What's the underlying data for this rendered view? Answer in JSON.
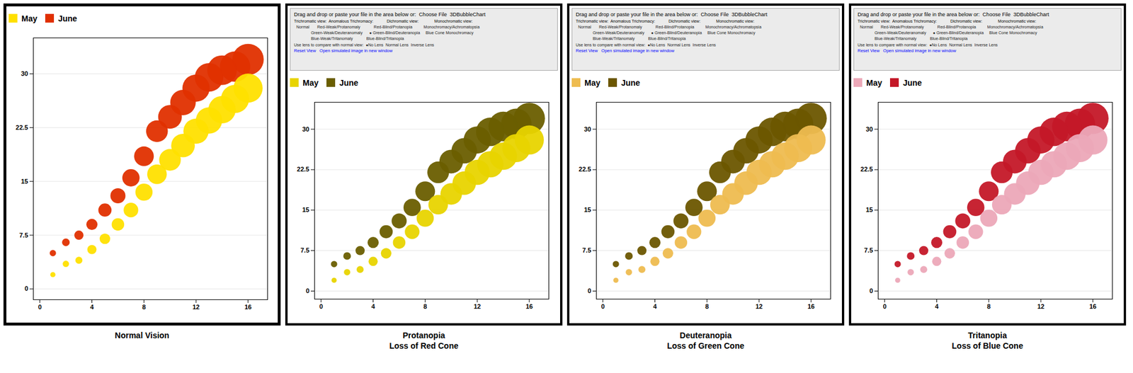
{
  "chart_data": [
    {
      "type": "scatter",
      "title": "Normal Vision",
      "x": [
        1,
        2,
        3,
        4,
        5,
        6,
        7,
        8,
        9,
        10,
        11,
        12,
        13,
        14,
        15,
        16
      ],
      "series": [
        {
          "name": "May",
          "color": "#FFE000",
          "values": [
            2.0,
            3.5,
            4.0,
            5.5,
            7.0,
            9.0,
            11.0,
            13.5,
            16.0,
            18.0,
            20.0,
            22.0,
            23.5,
            25.0,
            26.5,
            28.0
          ],
          "sizes": [
            60,
            90,
            110,
            190,
            250,
            350,
            480,
            660,
            860,
            1050,
            1250,
            1430,
            1560,
            1680,
            1780,
            1900
          ]
        },
        {
          "name": "June",
          "color": "#E03000",
          "values": [
            5.0,
            6.5,
            7.5,
            9.0,
            11.0,
            13.0,
            15.5,
            18.5,
            22.0,
            24.0,
            26.0,
            28.0,
            29.5,
            30.5,
            31.0,
            32.0
          ],
          "sizes": [
            90,
            130,
            190,
            280,
            390,
            510,
            670,
            870,
            1060,
            1260,
            1460,
            1660,
            1830,
            1970,
            2070,
            2200
          ]
        }
      ],
      "xlim": [
        -0.5,
        17.5
      ],
      "ylim": [
        -1.5,
        35
      ],
      "xticks": [
        0,
        4,
        8,
        12,
        16
      ],
      "yticks": [
        0,
        7.5,
        15,
        22.5,
        30
      ],
      "grid": "y",
      "legend": "upper left"
    },
    {
      "type": "scatter",
      "title": "Protanopia\nLoss of Red Cone",
      "annotations": [
        "Drag and drop or paste your file in the area below or:  Choose File  3DBubbleChart",
        "Trichromatic view:  Anomalous Trichromacy:            Dichromatic view:              Monochromatic view:",
        "  Normal       Red-Weak/Protanomaly            Red-Blind/Protanopia          Monochromacy/Achromatopsia",
        "               Green-Weak/Deuteranomaly      ● Green-Blind/Deuteranopia     Blue Cone Monochromacy",
        "               Blue-Weak/Tritanomaly            Blue-Blind/Tritanopia",
        "Use lens to compare with normal view:  ●No Lens  Normal Lens  Inverse Lens",
        "Reset View   Open simulated image in new window"
      ],
      "x": [
        1,
        2,
        3,
        4,
        5,
        6,
        7,
        8,
        9,
        10,
        11,
        12,
        13,
        14,
        15,
        16
      ],
      "series": [
        {
          "name": "May",
          "color": "#E8D400",
          "values": [
            2.0,
            3.5,
            4.0,
            5.5,
            7.0,
            9.0,
            11.0,
            13.5,
            16.0,
            18.0,
            20.0,
            22.0,
            23.5,
            25.0,
            26.5,
            28.0
          ],
          "sizes": [
            60,
            90,
            110,
            190,
            250,
            350,
            480,
            660,
            860,
            1050,
            1250,
            1430,
            1560,
            1680,
            1780,
            1900
          ]
        },
        {
          "name": "June",
          "color": "#6A5E00",
          "values": [
            5.0,
            6.5,
            7.5,
            9.0,
            11.0,
            13.0,
            15.5,
            18.5,
            22.0,
            24.0,
            26.0,
            28.0,
            29.5,
            30.5,
            31.0,
            32.0
          ],
          "sizes": [
            90,
            130,
            190,
            280,
            390,
            510,
            670,
            870,
            1060,
            1260,
            1460,
            1660,
            1830,
            1970,
            2070,
            2200
          ]
        }
      ],
      "xlim": [
        -0.5,
        17.5
      ],
      "ylim": [
        -1.5,
        35
      ],
      "xticks": [
        0,
        4,
        8,
        12,
        16
      ],
      "yticks": [
        0,
        7.5,
        15,
        22.5,
        30
      ],
      "grid": "y",
      "legend": "upper left"
    },
    {
      "type": "scatter",
      "title": "Deuteranopia\nLoss of Green Cone",
      "annotations": [
        "Drag and drop or paste your file in the area below or:  Choose File  3DBubbleChart",
        "Trichromatic view:  Anomalous Trichromacy:            Dichromatic view:              Monochromatic view:",
        "  Normal       Red-Weak/Protanomaly            Red-Blind/Protanopia          Monochromacy/Achromatopsia",
        "               Green-Weak/Deuteranomaly      ● Green-Blind/Deuteranopia     Blue Cone Monochromacy",
        "               Blue-Weak/Tritanomaly            Blue-Blind/Tritanopia",
        "Use lens to compare with normal view:  ●No Lens  Normal Lens  Inverse Lens",
        "Reset View   Open simulated image in new window"
      ],
      "x": [
        1,
        2,
        3,
        4,
        5,
        6,
        7,
        8,
        9,
        10,
        11,
        12,
        13,
        14,
        15,
        16
      ],
      "series": [
        {
          "name": "May",
          "color": "#EEBC50",
          "values": [
            2.0,
            3.5,
            4.0,
            5.5,
            7.0,
            9.0,
            11.0,
            13.5,
            16.0,
            18.0,
            20.0,
            22.0,
            23.5,
            25.0,
            26.5,
            28.0
          ],
          "sizes": [
            60,
            90,
            110,
            190,
            250,
            350,
            480,
            660,
            860,
            1050,
            1250,
            1430,
            1560,
            1680,
            1780,
            1900
          ]
        },
        {
          "name": "June",
          "color": "#6B5600",
          "values": [
            5.0,
            6.5,
            7.5,
            9.0,
            11.0,
            13.0,
            15.5,
            18.5,
            22.0,
            24.0,
            26.0,
            28.0,
            29.5,
            30.5,
            31.0,
            32.0
          ],
          "sizes": [
            90,
            130,
            190,
            280,
            390,
            510,
            670,
            870,
            1060,
            1260,
            1460,
            1660,
            1830,
            1970,
            2070,
            2200
          ]
        }
      ],
      "xlim": [
        -0.5,
        17.5
      ],
      "ylim": [
        -1.5,
        35
      ],
      "xticks": [
        0,
        4,
        8,
        12,
        16
      ],
      "yticks": [
        0,
        7.5,
        15,
        22.5,
        30
      ],
      "grid": "y",
      "legend": "upper left"
    },
    {
      "type": "scatter",
      "title": "Tritanopia\nLoss of Blue Cone",
      "annotations": [
        "Drag and drop or paste your file in the area below or:  Choose File  3DBubbleChart",
        "Trichromatic view:  Anomalous Trichromacy:            Dichromatic view:              Monochromatic view:",
        "  Normal       Red-Weak/Protanomaly            Red-Blind/Protanopia          Monochromacy/Achromatopsia",
        "               Green-Weak/Deuteranomaly      ● Green-Blind/Deuteranopia     Blue Cone Monochromacy",
        "               Blue-Weak/Tritanomaly            Blue-Blind/Tritanopia",
        "Use lens to compare with normal view:  ●No Lens  Normal Lens  Inverse Lens",
        "Reset View   Open simulated image in new window"
      ],
      "x": [
        1,
        2,
        3,
        4,
        5,
        6,
        7,
        8,
        9,
        10,
        11,
        12,
        13,
        14,
        15,
        16
      ],
      "series": [
        {
          "name": "May",
          "color": "#ECA8B8",
          "values": [
            2.0,
            3.5,
            4.0,
            5.5,
            7.0,
            9.0,
            11.0,
            13.5,
            16.0,
            18.0,
            20.0,
            22.0,
            23.5,
            25.0,
            26.5,
            28.0
          ],
          "sizes": [
            60,
            90,
            110,
            190,
            250,
            350,
            480,
            660,
            860,
            1050,
            1250,
            1430,
            1560,
            1680,
            1780,
            1900
          ]
        },
        {
          "name": "June",
          "color": "#C41828",
          "values": [
            5.0,
            6.5,
            7.5,
            9.0,
            11.0,
            13.0,
            15.5,
            18.5,
            22.0,
            24.0,
            26.0,
            28.0,
            29.5,
            30.5,
            31.0,
            32.0
          ],
          "sizes": [
            90,
            130,
            190,
            280,
            390,
            510,
            670,
            870,
            1060,
            1260,
            1460,
            1660,
            1830,
            1970,
            2070,
            2200
          ]
        }
      ],
      "xlim": [
        -0.5,
        17.5
      ],
      "ylim": [
        -1.5,
        35
      ],
      "xticks": [
        0,
        4,
        8,
        12,
        16
      ],
      "yticks": [
        0,
        7.5,
        15,
        22.5,
        30
      ],
      "grid": "y",
      "legend": "upper left"
    }
  ]
}
